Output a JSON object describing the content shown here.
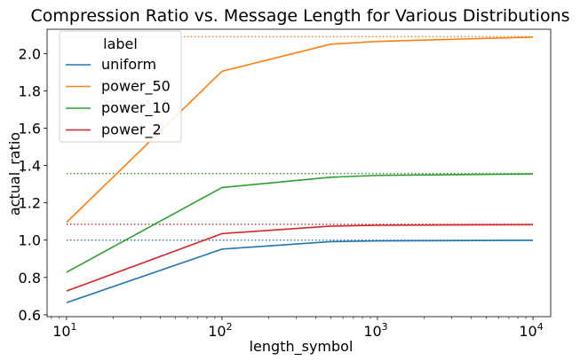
{
  "chart_data": {
    "type": "line",
    "title": "Compression Ratio vs. Message Length for Various Distributions",
    "xlabel": "length_symbol",
    "ylabel": "actual_ratio",
    "x_scale": "log",
    "xlim": [
      7.5,
      13000
    ],
    "ylim": [
      0.59,
      2.13
    ],
    "x_ticks": [
      {
        "value": 10,
        "base": "10",
        "exp": "1"
      },
      {
        "value": 100,
        "base": "10",
        "exp": "2"
      },
      {
        "value": 1000,
        "base": "10",
        "exp": "3"
      },
      {
        "value": 10000,
        "base": "10",
        "exp": "4"
      }
    ],
    "y_ticks": [
      {
        "value": 0.6,
        "label": "0.6"
      },
      {
        "value": 0.8,
        "label": "0.8"
      },
      {
        "value": 1.0,
        "label": "1.0"
      },
      {
        "value": 1.2,
        "label": "1.2"
      },
      {
        "value": 1.4,
        "label": "1.4"
      },
      {
        "value": 1.6,
        "label": "1.6"
      },
      {
        "value": 1.8,
        "label": "1.8"
      },
      {
        "value": 2.0,
        "label": "2.0"
      }
    ],
    "grid": false,
    "legend": {
      "title": "label",
      "position": "top-left"
    },
    "x": [
      10,
      100,
      500,
      1000,
      10000
    ],
    "series": [
      {
        "name": "uniform",
        "color": "#1f77b4",
        "values": [
          0.665,
          0.952,
          0.992,
          0.996,
          0.999
        ],
        "reference": 1.0
      },
      {
        "name": "power_50",
        "color": "#ff7f0e",
        "values": [
          1.095,
          1.905,
          2.05,
          2.065,
          2.088
        ],
        "reference": 2.09
      },
      {
        "name": "power_10",
        "color": "#2ca02c",
        "values": [
          0.828,
          1.282,
          1.337,
          1.347,
          1.355
        ],
        "reference": 1.357
      },
      {
        "name": "power_2",
        "color": "#d62728",
        "values": [
          0.727,
          1.035,
          1.075,
          1.08,
          1.083
        ],
        "reference": 1.085
      }
    ]
  }
}
